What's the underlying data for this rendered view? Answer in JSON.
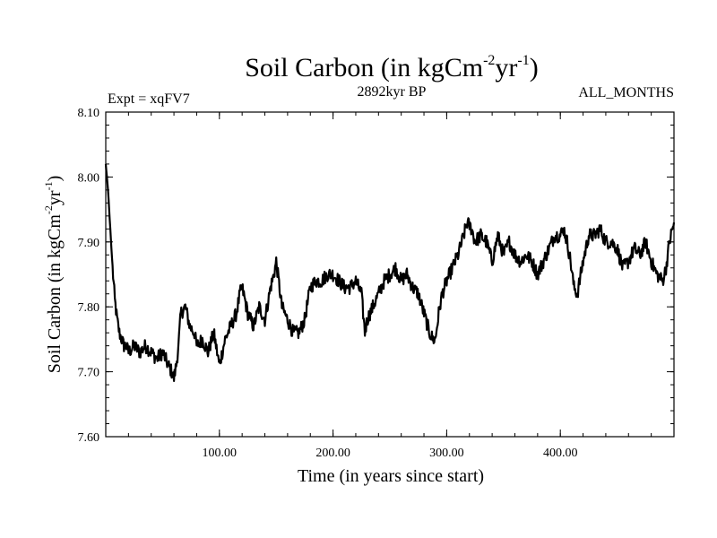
{
  "chart_data": {
    "type": "line",
    "title": {
      "base": "Soil Carbon (in kgCm",
      "sup1": "-2",
      "mid": "yr",
      "sup2": "-1",
      "end": ")"
    },
    "subtitle_left": "Expt = xqFV7",
    "subtitle_center": "2892kyr BP",
    "subtitle_right": "ALL_MONTHS",
    "xlabel": "Time (in years since start)",
    "ylabel": {
      "base": "Soil Carbon (in kgCm",
      "sup1": "-2",
      "mid": "yr",
      "sup2": "-1",
      "end": ")"
    },
    "xlim": [
      0,
      500
    ],
    "ylim": [
      7.6,
      8.1
    ],
    "xticks": [
      100,
      200,
      300,
      400
    ],
    "xtick_labels": [
      "100.00",
      "200.00",
      "300.00",
      "400.00"
    ],
    "yticks": [
      7.6,
      7.7,
      7.8,
      7.9,
      8.0,
      8.1
    ],
    "ytick_labels": [
      "7.60",
      "7.70",
      "7.80",
      "7.90",
      "8.00",
      "8.10"
    ],
    "grid": false,
    "color": "#000000",
    "series": [
      {
        "name": "Soil Carbon",
        "x": [
          0,
          2,
          4,
          6,
          8,
          10,
          12,
          14,
          16,
          18,
          20,
          25,
          30,
          35,
          40,
          45,
          50,
          55,
          58,
          60,
          62,
          64,
          66,
          70,
          74,
          78,
          80,
          85,
          90,
          95,
          100,
          105,
          110,
          115,
          118,
          120,
          125,
          130,
          135,
          140,
          145,
          148,
          150,
          155,
          160,
          165,
          170,
          175,
          180,
          185,
          190,
          195,
          200,
          205,
          210,
          215,
          220,
          225,
          228,
          230,
          235,
          240,
          245,
          250,
          255,
          260,
          265,
          270,
          275,
          280,
          285,
          288,
          290,
          293,
          296,
          300,
          305,
          310,
          315,
          318,
          322,
          325,
          330,
          335,
          340,
          345,
          350,
          355,
          360,
          365,
          370,
          375,
          380,
          385,
          390,
          395,
          400,
          403,
          406,
          409,
          412,
          415,
          420,
          425,
          430,
          435,
          440,
          445,
          450,
          455,
          460,
          465,
          470,
          475,
          480,
          485,
          490,
          493,
          496,
          500
        ],
        "y": [
          8.02,
          7.98,
          7.92,
          7.86,
          7.81,
          7.78,
          7.76,
          7.75,
          7.74,
          7.74,
          7.73,
          7.74,
          7.73,
          7.74,
          7.73,
          7.72,
          7.73,
          7.71,
          7.7,
          7.69,
          7.71,
          7.74,
          7.79,
          7.8,
          7.77,
          7.76,
          7.74,
          7.75,
          7.73,
          7.76,
          7.71,
          7.75,
          7.77,
          7.79,
          7.82,
          7.83,
          7.79,
          7.77,
          7.8,
          7.78,
          7.83,
          7.85,
          7.87,
          7.8,
          7.78,
          7.76,
          7.76,
          7.78,
          7.83,
          7.84,
          7.84,
          7.85,
          7.85,
          7.84,
          7.83,
          7.83,
          7.84,
          7.82,
          7.76,
          7.78,
          7.8,
          7.82,
          7.84,
          7.85,
          7.86,
          7.84,
          7.85,
          7.83,
          7.82,
          7.79,
          7.76,
          7.75,
          7.75,
          7.79,
          7.82,
          7.84,
          7.86,
          7.88,
          7.91,
          7.93,
          7.92,
          7.9,
          7.91,
          7.9,
          7.87,
          7.91,
          7.88,
          7.9,
          7.88,
          7.87,
          7.88,
          7.87,
          7.85,
          7.87,
          7.89,
          7.91,
          7.91,
          7.92,
          7.9,
          7.87,
          7.83,
          7.82,
          7.87,
          7.91,
          7.91,
          7.92,
          7.9,
          7.9,
          7.89,
          7.86,
          7.87,
          7.89,
          7.88,
          7.9,
          7.87,
          7.85,
          7.84,
          7.86,
          7.9,
          7.93
        ]
      }
    ]
  }
}
